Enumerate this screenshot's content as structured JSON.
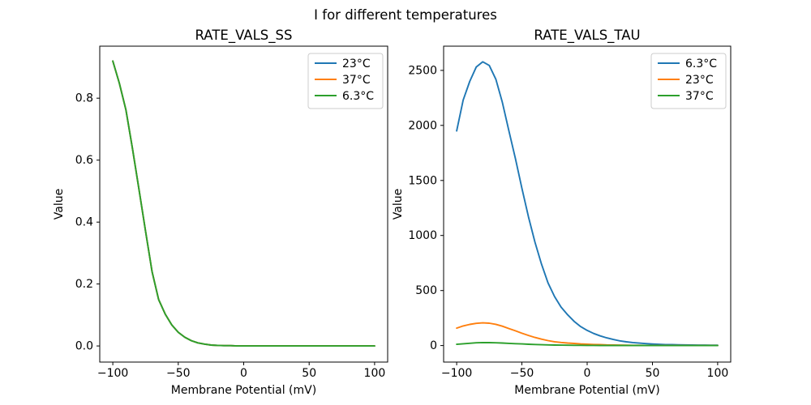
{
  "chart_data": {
    "type": "line",
    "suptitle": "I for different temperatures",
    "grid": false,
    "charts": [
      {
        "title": "RATE_VALS_SS",
        "xlabel": "Membrane Potential (mV)",
        "ylabel": "Value",
        "xlim": [
          -110,
          110
        ],
        "ylim": [
          -0.052,
          0.968
        ],
        "xticks": [
          -100,
          -50,
          0,
          50,
          100
        ],
        "xtick_labels": [
          "−100",
          "−50",
          "0",
          "50",
          "100"
        ],
        "yticks": [
          0.0,
          0.2,
          0.4,
          0.6,
          0.8
        ],
        "ytick_labels": [
          "0.0",
          "0.2",
          "0.4",
          "0.6",
          "0.8"
        ],
        "legend_position": "upper right",
        "x": [
          -100,
          -95,
          -90,
          -85,
          -80,
          -75,
          -70,
          -65,
          -60,
          -55,
          -50,
          -45,
          -40,
          -35,
          -30,
          -25,
          -20,
          -15,
          -10,
          -5,
          0,
          5,
          10,
          15,
          20,
          25,
          30,
          35,
          40,
          45,
          50,
          55,
          60,
          65,
          70,
          75,
          80,
          85,
          90,
          95,
          100
        ],
        "series": [
          {
            "name": "23°C",
            "color": "#1f77b4",
            "values": [
              0.92,
              0.848,
              0.762,
              0.638,
              0.505,
              0.37,
              0.24,
              0.15,
              0.103,
              0.068,
              0.044,
              0.028,
              0.017,
              0.01,
              0.006,
              0.003,
              0.002,
              0.001,
              0.001,
              0,
              0,
              0,
              0,
              0,
              0,
              0,
              0,
              0,
              0,
              0,
              0,
              0,
              0,
              0,
              0,
              0,
              0,
              0,
              0,
              0,
              0
            ]
          },
          {
            "name": "37°C",
            "color": "#ff7f0e",
            "values": [
              0.92,
              0.848,
              0.762,
              0.638,
              0.505,
              0.37,
              0.24,
              0.15,
              0.103,
              0.068,
              0.044,
              0.028,
              0.017,
              0.01,
              0.006,
              0.003,
              0.002,
              0.001,
              0.001,
              0,
              0,
              0,
              0,
              0,
              0,
              0,
              0,
              0,
              0,
              0,
              0,
              0,
              0,
              0,
              0,
              0,
              0,
              0,
              0,
              0,
              0
            ]
          },
          {
            "name": "6.3°C",
            "color": "#2ca02c",
            "values": [
              0.92,
              0.848,
              0.762,
              0.638,
              0.505,
              0.37,
              0.24,
              0.15,
              0.103,
              0.068,
              0.044,
              0.028,
              0.017,
              0.01,
              0.006,
              0.003,
              0.002,
              0.001,
              0.001,
              0,
              0,
              0,
              0,
              0,
              0,
              0,
              0,
              0,
              0,
              0,
              0,
              0,
              0,
              0,
              0,
              0,
              0,
              0,
              0,
              0,
              0
            ]
          }
        ]
      },
      {
        "title": "RATE_VALS_TAU",
        "xlabel": "Membrane Potential (mV)",
        "ylabel": "Value",
        "xlim": [
          -110,
          110
        ],
        "ylim": [
          -150,
          2720
        ],
        "xticks": [
          -100,
          -50,
          0,
          50,
          100
        ],
        "xtick_labels": [
          "−100",
          "−50",
          "0",
          "50",
          "100"
        ],
        "yticks": [
          0,
          500,
          1000,
          1500,
          2000,
          2500
        ],
        "ytick_labels": [
          "0",
          "500",
          "1000",
          "1500",
          "2000",
          "2500"
        ],
        "legend_position": "upper right",
        "x": [
          -100,
          -95,
          -90,
          -85,
          -80,
          -75,
          -70,
          -65,
          -60,
          -55,
          -50,
          -45,
          -40,
          -35,
          -30,
          -25,
          -20,
          -15,
          -10,
          -5,
          0,
          5,
          10,
          15,
          20,
          25,
          30,
          35,
          40,
          45,
          50,
          55,
          60,
          65,
          70,
          75,
          80,
          85,
          90,
          95,
          100
        ],
        "series": [
          {
            "name": "6.3°C",
            "color": "#1f77b4",
            "values": [
              1950,
              2230,
              2400,
              2530,
              2578,
              2545,
              2420,
              2210,
              1950,
              1700,
              1430,
              1170,
              940,
              740,
              570,
              445,
              350,
              280,
              220,
              172,
              138,
              110,
              88,
              70,
              55,
              43,
              34,
              27,
              22,
              18,
              14,
              11,
              9,
              8,
              7,
              6,
              5,
              4,
              4,
              3,
              3
            ]
          },
          {
            "name": "23°C",
            "color": "#ff7f0e",
            "values": [
              158,
              178,
              192,
              202,
              206,
              203,
              193,
              176,
              155,
              134,
              112,
              92,
              74,
              58,
              45,
              35,
              28,
              23,
              19,
              15,
              12,
              10,
              8,
              6,
              5,
              4,
              3,
              2.5,
              2,
              1.6,
              1.3,
              1,
              0.8,
              0.7,
              0.6,
              0.5,
              0.4,
              0.4,
              0.3,
              0.3,
              0.3
            ]
          },
          {
            "name": "37°C",
            "color": "#2ca02c",
            "values": [
              11,
              16,
              21,
              25,
              27,
              26.5,
              25,
              23,
              20,
              17,
              14.5,
              12,
              9.5,
              7.5,
              6,
              4.5,
              3.5,
              3,
              2.5,
              2,
              1.8,
              1.5,
              1.2,
              1,
              0.9,
              0.8,
              0.7,
              0.6,
              0.5,
              0.5,
              0.4,
              0.4,
              0.3,
              0.3,
              0.3,
              0.3,
              0.3,
              0.3,
              0.3,
              0.3,
              0.3
            ]
          }
        ]
      }
    ]
  }
}
